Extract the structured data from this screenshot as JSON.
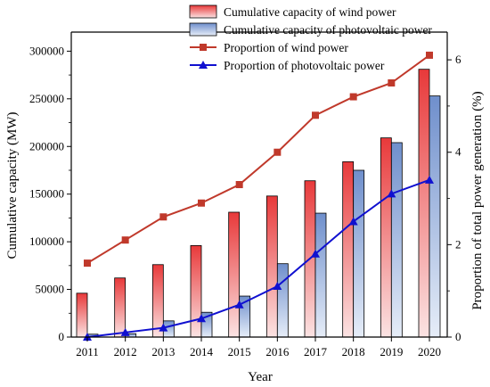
{
  "chart_data": {
    "type": "bar",
    "categories": [
      "2011",
      "2012",
      "2013",
      "2014",
      "2015",
      "2016",
      "2017",
      "2018",
      "2019",
      "2020"
    ],
    "xlabel": "Year",
    "ylabel_left": "Cumulative capacity (MW)",
    "ylabel_right": "Proportion of total power generation (%)",
    "ylim_left": [
      0,
      320000
    ],
    "yticks_left": [
      0,
      50000,
      100000,
      150000,
      200000,
      250000,
      300000
    ],
    "ylim_right": [
      0,
      6.6
    ],
    "yticks_right": [
      0,
      2,
      4,
      6
    ],
    "legend_position": "top-right",
    "series": [
      {
        "name": "Cumulative capacity of wind power",
        "type": "bar",
        "axis": "left",
        "color": "#e05555",
        "values": [
          46000,
          62000,
          76000,
          96000,
          131000,
          148000,
          164000,
          184000,
          209000,
          281000
        ]
      },
      {
        "name": "Cumulative capacity of photovoltaic power",
        "type": "bar",
        "axis": "left",
        "color": "#7f9bd1",
        "values": [
          3000,
          3500,
          17000,
          26000,
          43000,
          77000,
          130000,
          175000,
          204000,
          253000
        ]
      },
      {
        "name": "Proportion of wind power",
        "type": "line",
        "axis": "right",
        "color": "#c0392b",
        "marker": "square",
        "values": [
          1.6,
          2.1,
          2.6,
          2.9,
          3.3,
          4.0,
          4.8,
          5.2,
          5.5,
          6.1
        ]
      },
      {
        "name": "Proportion of photovoltaic power",
        "type": "line",
        "axis": "right",
        "color": "#1010d0",
        "marker": "triangle",
        "values": [
          0.0,
          0.1,
          0.2,
          0.4,
          0.7,
          1.1,
          1.8,
          2.5,
          3.1,
          3.4
        ]
      }
    ]
  }
}
